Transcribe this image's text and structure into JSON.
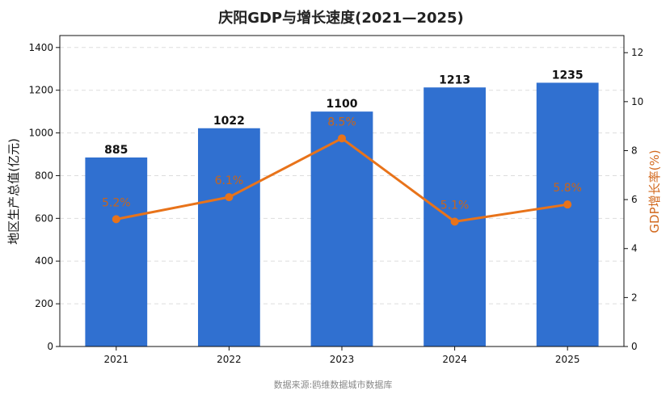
{
  "chart_data": {
    "type": "bar",
    "title": "庆阳GDP与增长速度(2021—2025)",
    "categories": [
      "2021",
      "2022",
      "2023",
      "2024",
      "2025"
    ],
    "series": [
      {
        "name": "地区生产总值(亿元)",
        "type": "bar",
        "axis": "left",
        "color": "#3070d0",
        "values": [
          885,
          1022,
          1100,
          1213,
          1235
        ],
        "labels": [
          "885",
          "1022",
          "1100",
          "1213",
          "1235"
        ]
      },
      {
        "name": "GDP增长率(%)",
        "type": "line",
        "axis": "right",
        "color": "#e8731a",
        "values": [
          5.2,
          6.1,
          8.5,
          5.1,
          5.8
        ],
        "labels": [
          "5.2%",
          "6.1%",
          "8.5%",
          "5.1%",
          "5.8%"
        ]
      }
    ],
    "ylabel": "地区生产总值(亿元)",
    "ylabel_right": "GDP增长率(%)",
    "ylim": [
      0,
      1456
    ],
    "ylim_right": [
      0,
      12.7
    ],
    "yticks": [
      0,
      200,
      400,
      600,
      800,
      1000,
      1200,
      1400
    ],
    "yticks_right": [
      0,
      2,
      4,
      6,
      8,
      10,
      12
    ],
    "grid": true,
    "legend": "none"
  },
  "source": "数据来源:鸥维数据城市数据库"
}
